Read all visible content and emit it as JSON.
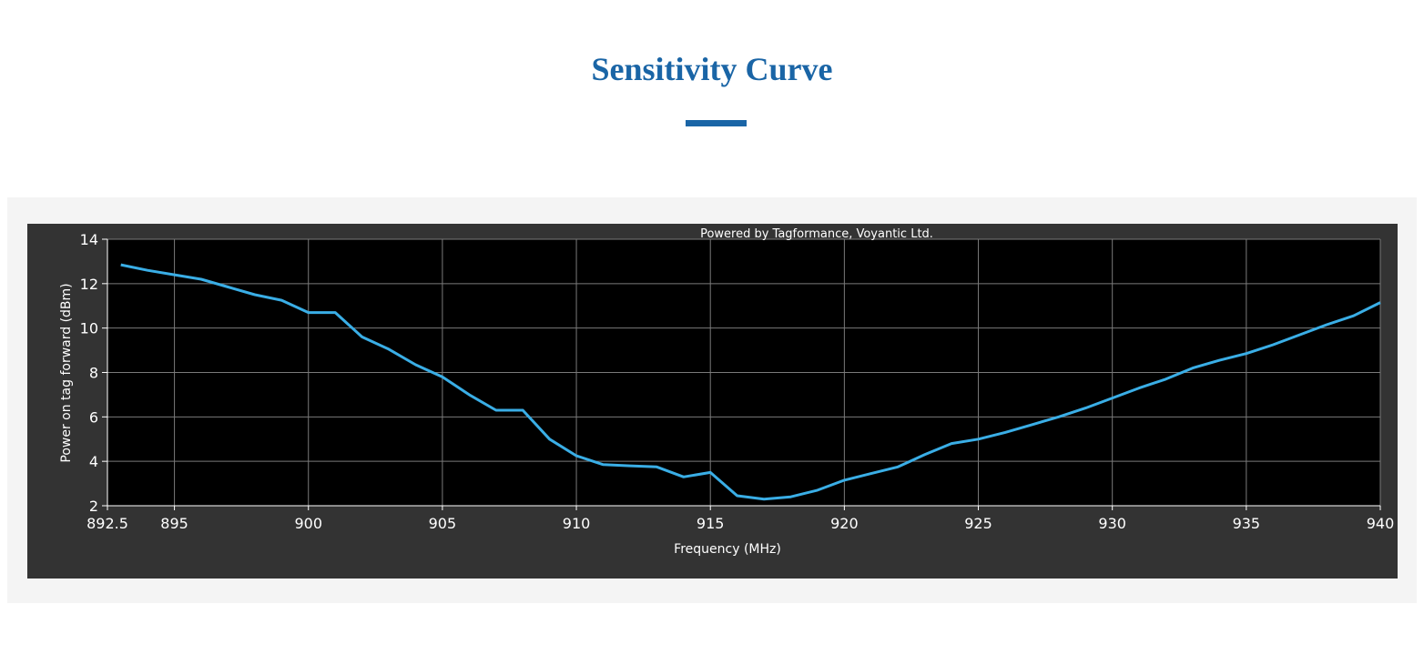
{
  "header": {
    "title": "Sensitivity Curve"
  },
  "colors": {
    "brand": "#1a65a6",
    "panel_background": "#f4f4f4",
    "chart_frame": "#333333",
    "plot_background": "#000000",
    "grid": "#7a7a7a",
    "series_line": "#3aaee6"
  },
  "chart_data": {
    "type": "line",
    "annotation": "Powered by Tagformance, Voyantic Ltd.",
    "xlabel": "Frequency (MHz)",
    "ylabel": "Power on tag forward (dBm)",
    "xlim": [
      892.5,
      940
    ],
    "ylim": [
      2,
      14
    ],
    "x_ticks": [
      892.5,
      895,
      900,
      905,
      910,
      915,
      920,
      925,
      930,
      935,
      940
    ],
    "x_tick_labels": [
      "892.5",
      "895",
      "900",
      "905",
      "910",
      "915",
      "920",
      "925",
      "930",
      "935",
      "940"
    ],
    "y_ticks": [
      2,
      4,
      6,
      8,
      10,
      12,
      14
    ],
    "y_tick_labels": [
      "2",
      "4",
      "6",
      "8",
      "10",
      "12",
      "14"
    ],
    "grid": true,
    "legend": "none",
    "series": [
      {
        "x": [
          893,
          894,
          895,
          896,
          897,
          898,
          899,
          900,
          901,
          902,
          903,
          904,
          905,
          906,
          907,
          908,
          909,
          910,
          911,
          912,
          913,
          914,
          915,
          916,
          917,
          918,
          919,
          920,
          921,
          922,
          923,
          924,
          925,
          926,
          927,
          928,
          929,
          930,
          931,
          932,
          933,
          934,
          935,
          936,
          937,
          938,
          939,
          940
        ],
        "values": [
          12.85,
          12.6,
          12.4,
          12.2,
          11.85,
          11.5,
          11.25,
          10.7,
          10.7,
          9.6,
          9.05,
          8.35,
          7.8,
          7.0,
          6.3,
          6.3,
          5.0,
          4.25,
          3.85,
          3.8,
          3.75,
          3.3,
          3.5,
          2.45,
          2.3,
          2.4,
          2.7,
          3.15,
          3.45,
          3.75,
          4.3,
          4.8,
          5.0,
          5.3,
          5.65,
          6.0,
          6.4,
          6.85,
          7.3,
          7.7,
          8.2,
          8.55,
          8.85,
          9.25,
          9.7,
          10.15,
          10.55,
          11.15
        ]
      }
    ]
  }
}
